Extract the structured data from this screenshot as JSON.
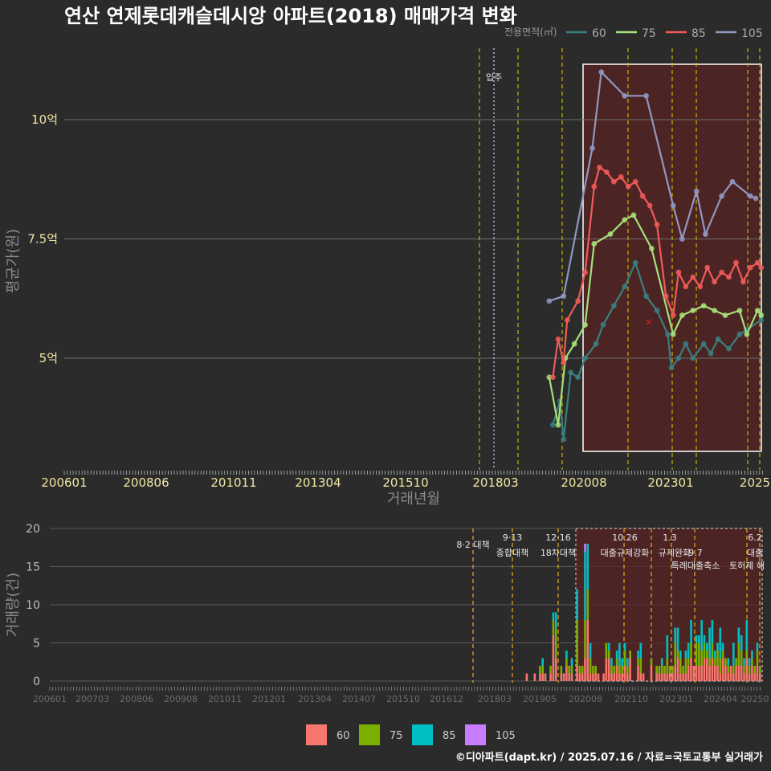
{
  "title": "연산 연제롯데캐슬데시앙 아파트(2018) 매매가격 변화",
  "credit": "©디아파트(dapt.kr) / 2025.07.16 / 자료=국토교통부 실거래가",
  "legend": {
    "title": "전용면적(㎡)",
    "items": [
      {
        "label": "60",
        "color": "#3a7f7f"
      },
      {
        "label": "75",
        "color": "#a6e07a"
      },
      {
        "label": "85",
        "color": "#f05a5a"
      },
      {
        "label": "105",
        "color": "#9098c0"
      }
    ]
  },
  "bottom_legend": {
    "items": [
      {
        "label": "60",
        "color": "#f8766d"
      },
      {
        "label": "75",
        "color": "#7cae00"
      },
      {
        "label": "85",
        "color": "#00bfc4"
      },
      {
        "label": "105",
        "color": "#c77cff"
      }
    ]
  },
  "chart_data": [
    {
      "type": "line",
      "title": "연산 연제롯데캐슬데시앙 아파트(2018) 매매가격 변화",
      "xlabel": "거래년월",
      "ylabel": "평균가(원)",
      "x_ticks": [
        "200601",
        "200806",
        "201011",
        "201304",
        "201510",
        "201803",
        "202008",
        "202301",
        "2025"
      ],
      "y_ticks": [
        {
          "value": 5,
          "label": "5억"
        },
        {
          "value": 7.5,
          "label": "7.5억"
        },
        {
          "value": 10,
          "label": "10억"
        }
      ],
      "ylim": [
        2.5,
        11.5
      ],
      "move_in_label": "입주",
      "series": [
        {
          "name": "60",
          "values": [
            [
              2019.6,
              3.6
            ],
            [
              2019.8,
              4.1
            ],
            [
              2019.9,
              3.3
            ],
            [
              2020.1,
              4.7
            ],
            [
              2020.3,
              4.6
            ],
            [
              2020.5,
              5.0
            ],
            [
              2020.8,
              5.3
            ],
            [
              2021.0,
              5.7
            ],
            [
              2021.3,
              6.1
            ],
            [
              2021.6,
              6.5
            ],
            [
              2021.9,
              7.0
            ],
            [
              2022.2,
              6.3
            ],
            [
              2022.5,
              6.0
            ],
            [
              2022.8,
              5.5
            ],
            [
              2022.9,
              4.8
            ],
            [
              2023.1,
              5.0
            ],
            [
              2023.3,
              5.3
            ],
            [
              2023.5,
              5.0
            ],
            [
              2023.8,
              5.3
            ],
            [
              2024.0,
              5.1
            ],
            [
              2024.2,
              5.4
            ],
            [
              2024.5,
              5.2
            ],
            [
              2024.8,
              5.5
            ],
            [
              2025.0,
              5.6
            ],
            [
              2025.4,
              5.8
            ]
          ]
        },
        {
          "name": "75",
          "values": [
            [
              2019.5,
              4.6
            ],
            [
              2019.75,
              3.6
            ],
            [
              2019.95,
              5.0
            ],
            [
              2020.2,
              5.3
            ],
            [
              2020.5,
              5.7
            ],
            [
              2020.75,
              7.4
            ],
            [
              2021.2,
              7.6
            ],
            [
              2021.6,
              7.9
            ],
            [
              2021.85,
              8.0
            ],
            [
              2022.35,
              7.3
            ],
            [
              2022.95,
              5.5
            ],
            [
              2023.2,
              5.9
            ],
            [
              2023.5,
              6.0
            ],
            [
              2023.8,
              6.1
            ],
            [
              2024.1,
              6.0
            ],
            [
              2024.4,
              5.9
            ],
            [
              2024.8,
              6.0
            ],
            [
              2025.0,
              5.5
            ],
            [
              2025.3,
              6.0
            ],
            [
              2025.4,
              5.9
            ]
          ]
        },
        {
          "name": "85",
          "values": [
            [
              2019.6,
              4.6
            ],
            [
              2019.75,
              5.4
            ],
            [
              2019.9,
              4.9
            ],
            [
              2020.0,
              5.8
            ],
            [
              2020.3,
              6.2
            ],
            [
              2020.5,
              6.8
            ],
            [
              2020.75,
              8.6
            ],
            [
              2020.9,
              9.0
            ],
            [
              2021.1,
              8.9
            ],
            [
              2021.3,
              8.7
            ],
            [
              2021.5,
              8.8
            ],
            [
              2021.7,
              8.6
            ],
            [
              2021.9,
              8.7
            ],
            [
              2022.1,
              8.4
            ],
            [
              2022.3,
              8.2
            ],
            [
              2022.5,
              7.8
            ],
            [
              2022.75,
              6.3
            ],
            [
              2022.95,
              5.9
            ],
            [
              2023.1,
              6.8
            ],
            [
              2023.3,
              6.5
            ],
            [
              2023.5,
              6.7
            ],
            [
              2023.7,
              6.5
            ],
            [
              2023.9,
              6.9
            ],
            [
              2024.1,
              6.6
            ],
            [
              2024.3,
              6.8
            ],
            [
              2024.5,
              6.7
            ],
            [
              2024.7,
              7.0
            ],
            [
              2024.9,
              6.6
            ],
            [
              2025.1,
              6.9
            ],
            [
              2025.3,
              7.0
            ],
            [
              2025.4,
              6.9
            ]
          ]
        },
        {
          "name": "105",
          "values": [
            [
              2019.5,
              6.2
            ],
            [
              2019.9,
              6.3
            ],
            [
              2020.7,
              9.4
            ],
            [
              2020.95,
              11.0
            ],
            [
              2021.6,
              10.5
            ],
            [
              2022.2,
              10.5
            ],
            [
              2022.95,
              8.2
            ],
            [
              2023.2,
              7.5
            ],
            [
              2023.6,
              8.5
            ],
            [
              2023.85,
              7.6
            ],
            [
              2024.3,
              8.4
            ],
            [
              2024.6,
              8.7
            ],
            [
              2025.1,
              8.4
            ],
            [
              2025.25,
              8.35
            ]
          ]
        }
      ]
    },
    {
      "type": "bar",
      "xlabel": "",
      "ylabel": "거래량(건)",
      "x_ticks": [
        "200601",
        "200703",
        "200806",
        "200908",
        "201011",
        "201201",
        "201304",
        "201407",
        "201510",
        "201612",
        "201803",
        "201905",
        "202008",
        "202110",
        "202301",
        "202404",
        "20250"
      ],
      "y_ticks": [
        0,
        5,
        10,
        15,
        20
      ],
      "ylim": [
        0,
        20
      ],
      "policy_events": [
        {
          "date": "8·2 대책",
          "label": "8·2 대책"
        },
        {
          "date": "9·13",
          "label": "종합대책"
        },
        {
          "date": "12·16",
          "label": "18차대책"
        },
        {
          "date": "10.26",
          "label": "대출규제강화"
        },
        {
          "date": "1.3",
          "label": "규제완화"
        },
        {
          "date": "9.7",
          "label": "특례대출축소"
        },
        {
          "date": "토허제 해",
          "label": "토허제 해"
        },
        {
          "date": "6.2",
          "label": "대출"
        }
      ],
      "series_order": [
        "60",
        "75",
        "85",
        "105"
      ]
    }
  ]
}
